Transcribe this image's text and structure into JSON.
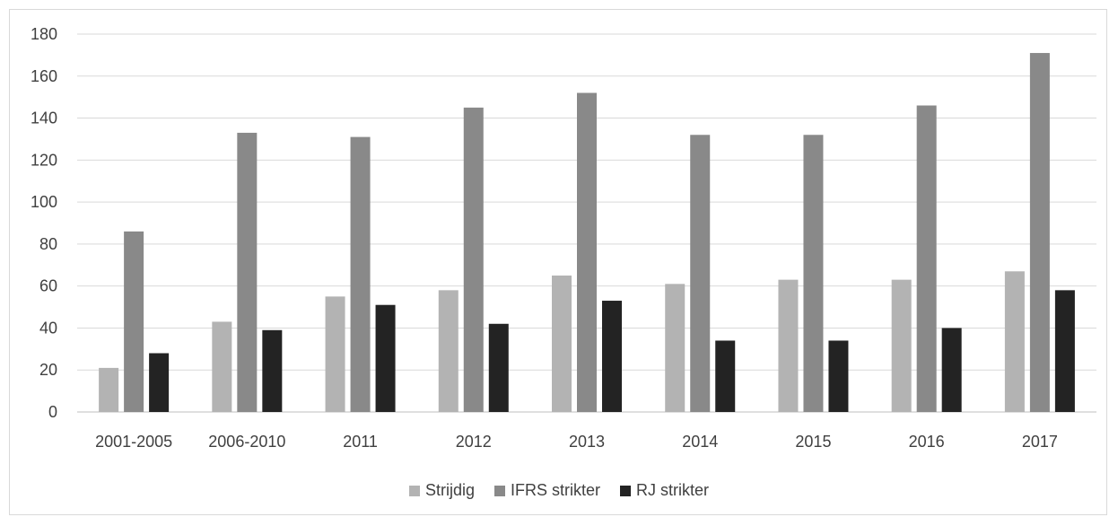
{
  "chart_data": {
    "type": "bar",
    "title": "",
    "xlabel": "",
    "ylabel": "",
    "ylim": [
      0,
      180
    ],
    "yticks": [
      0,
      20,
      40,
      60,
      80,
      100,
      120,
      140,
      160,
      180
    ],
    "grid": true,
    "legend_position": "bottom-center",
    "categories": [
      "2001-2005",
      "2006-2010",
      "2011",
      "2012",
      "2013",
      "2014",
      "2015",
      "2016",
      "2017"
    ],
    "series": [
      {
        "name": "Strijdig",
        "color": "#b3b3b3",
        "values": [
          21,
          43,
          55,
          58,
          65,
          61,
          63,
          63,
          67
        ]
      },
      {
        "name": "IFRS strikter",
        "color": "#898989",
        "values": [
          86,
          133,
          131,
          145,
          152,
          132,
          132,
          146,
          171
        ]
      },
      {
        "name": "RJ strikter",
        "color": "#232323",
        "values": [
          28,
          39,
          51,
          42,
          53,
          34,
          34,
          40,
          58
        ]
      }
    ]
  }
}
